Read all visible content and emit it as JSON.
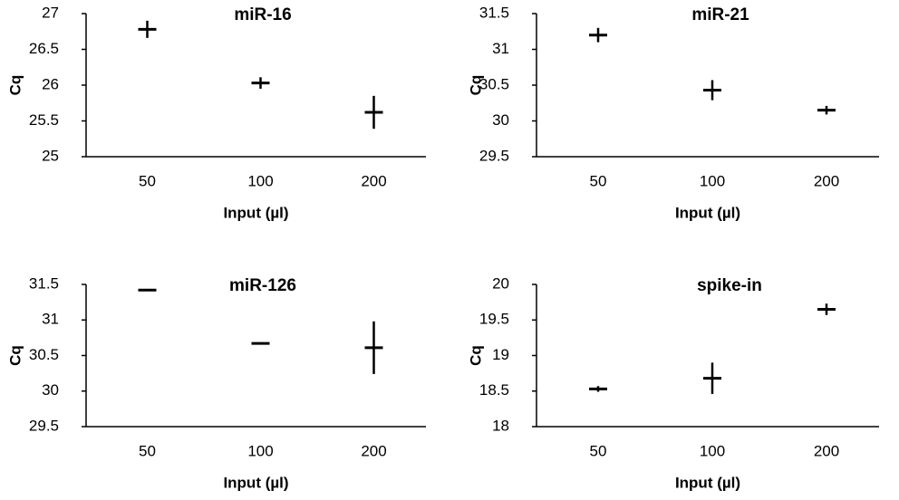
{
  "chart_data": [
    {
      "type": "errorbar",
      "title": "miR-16",
      "xlabel": "Input (µl)",
      "ylabel": "Cq",
      "categories": [
        "50",
        "100",
        "200"
      ],
      "values": [
        26.78,
        26.03,
        25.62
      ],
      "errors": [
        0.12,
        0.08,
        0.23
      ],
      "ylim": [
        25,
        27
      ],
      "yticks": [
        25,
        25.5,
        26,
        26.5,
        27
      ],
      "color": "#000000"
    },
    {
      "type": "errorbar",
      "title": "miR-21",
      "xlabel": "Input (µl)",
      "ylabel": "Cq",
      "categories": [
        "50",
        "100",
        "200"
      ],
      "values": [
        31.2,
        30.43,
        30.15
      ],
      "errors": [
        0.1,
        0.14,
        0.06
      ],
      "ylim": [
        29.5,
        31.5
      ],
      "yticks": [
        29.5,
        30,
        30.5,
        31,
        31.5
      ],
      "color": "#000000"
    },
    {
      "type": "errorbar",
      "title": "miR-126",
      "xlabel": "Input (µl)",
      "ylabel": "Cq",
      "categories": [
        "50",
        "100",
        "200"
      ],
      "values": [
        31.42,
        30.67,
        30.61
      ],
      "errors": [
        0,
        0,
        0.37
      ],
      "ylim": [
        29.5,
        31.5
      ],
      "yticks": [
        29.5,
        30,
        30.5,
        31,
        31.5
      ],
      "color": "#000000"
    },
    {
      "type": "errorbar",
      "title": "spike-in",
      "xlabel": "Input (µl)",
      "ylabel": "Cq",
      "categories": [
        "50",
        "100",
        "200"
      ],
      "values": [
        18.53,
        18.68,
        19.65
      ],
      "errors": [
        0.04,
        0.22,
        0.08
      ],
      "ylim": [
        18,
        20
      ],
      "yticks": [
        18,
        18.5,
        19,
        19.5,
        20
      ],
      "color": "#000000"
    }
  ]
}
